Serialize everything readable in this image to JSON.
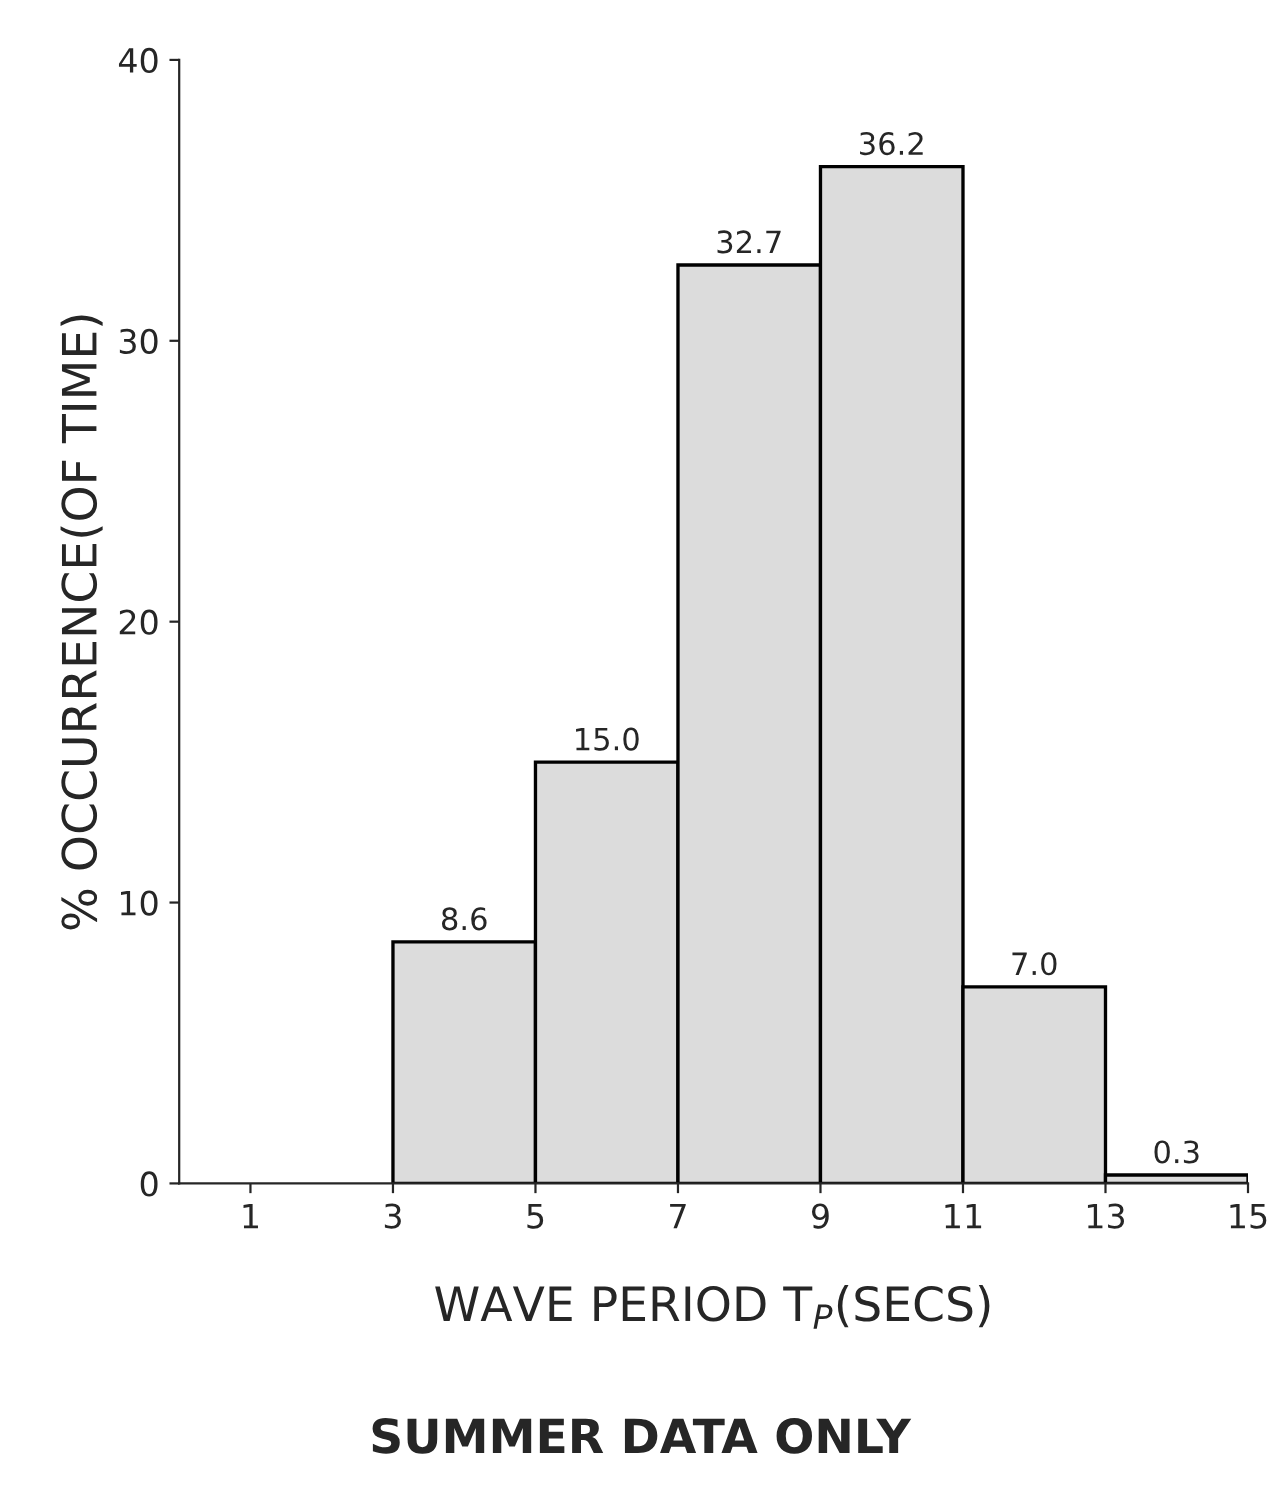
{
  "chart_data": {
    "type": "histogram",
    "xlabel": "WAVE PERIOD T$_{P}$(SECS)",
    "ylabel": "% OCCURRENCE(OF TIME)",
    "bins": [
      3,
      5,
      7,
      9,
      11,
      13,
      15
    ],
    "values": [
      8.6,
      15.0,
      32.7,
      36.2,
      7.0,
      0.3
    ],
    "value_labels": [
      "8.6",
      "15.0",
      "32.7",
      "36.2",
      "7.0",
      "0.3"
    ],
    "color": "#dcdcdc",
    "xlim": [
      0,
      15
    ],
    "xticks": [
      1,
      3,
      5,
      7,
      9,
      11,
      13,
      15
    ],
    "ylim": [
      0,
      40
    ],
    "yticks": [
      0,
      10,
      20,
      30,
      40
    ],
    "grid": false,
    "annotations": [
      "SUMMER DATA ONLY"
    ]
  }
}
